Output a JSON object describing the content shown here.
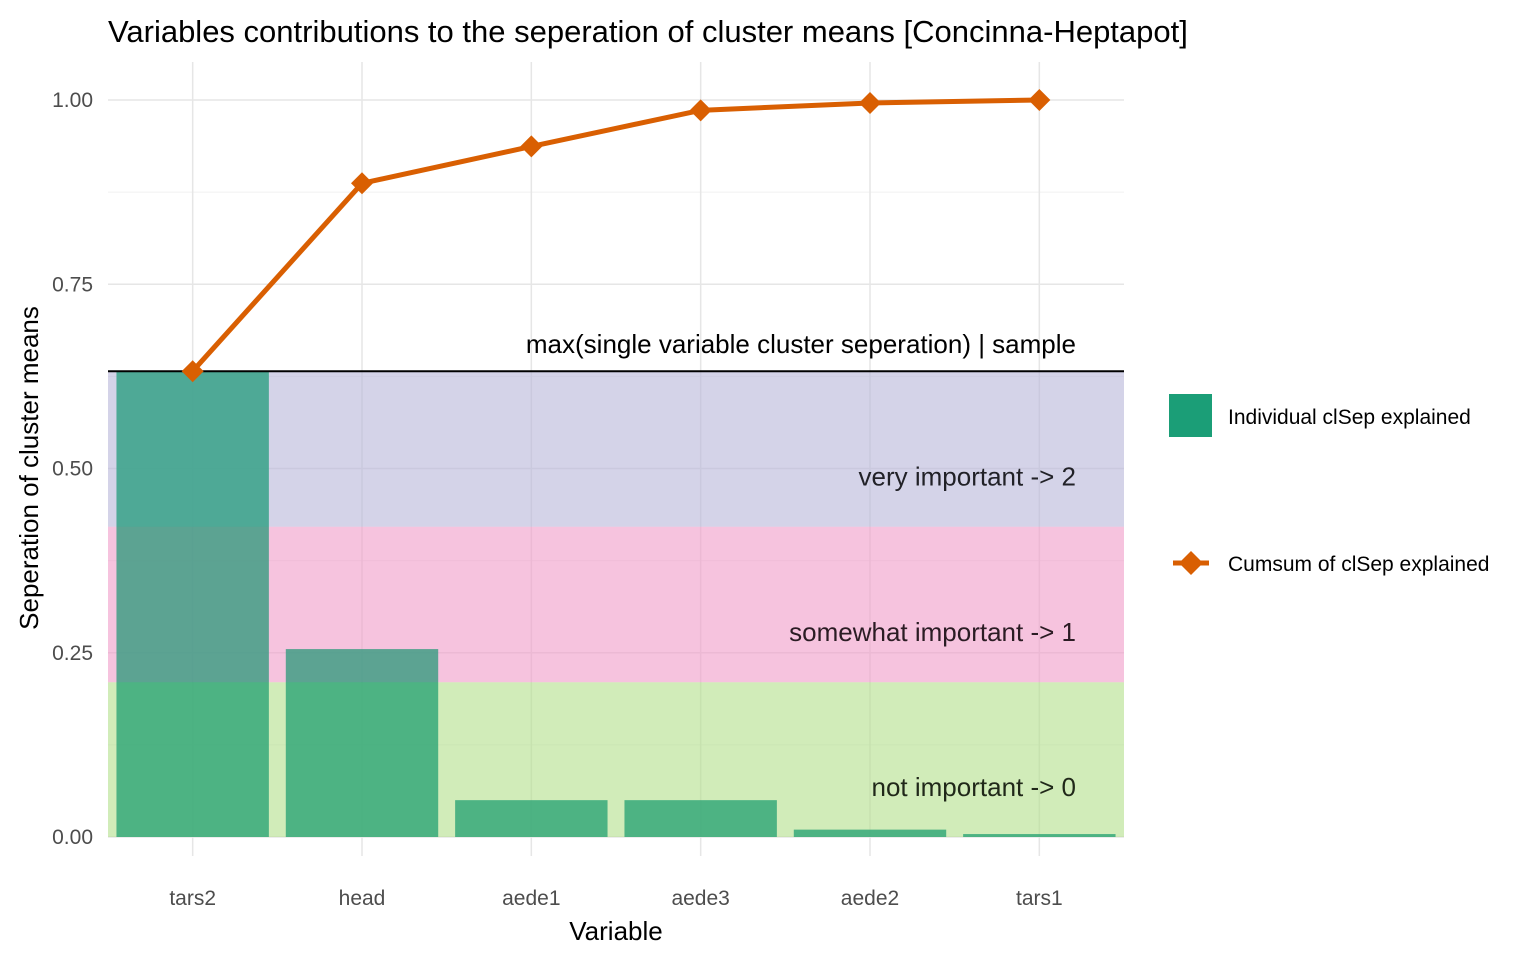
{
  "chart_data": {
    "type": "bar",
    "title": "Variables contributions to the seperation of cluster means [Concinna-Heptapot]",
    "xlabel": "Variable",
    "ylabel": "Seperation of cluster means",
    "categories": [
      "tars2",
      "head",
      "aede1",
      "aede3",
      "aede2",
      "tars1"
    ],
    "ylim": [
      0,
      1.04
    ],
    "yticks": [
      0,
      0.25,
      0.5,
      0.75,
      1.0
    ],
    "ytick_labels": [
      "0.00",
      "0.25",
      "0.50",
      "0.75",
      "1.00"
    ],
    "grid": true,
    "legend_position": "right",
    "series": [
      {
        "name": "Individual clSep explained",
        "type": "bar",
        "color": "#1b9e77",
        "values": [
          0.632,
          0.255,
          0.05,
          0.05,
          0.01,
          0.004
        ]
      },
      {
        "name": "Cumsum of clSep explained",
        "type": "line",
        "marker": "diamond",
        "color": "#d95f02",
        "values": [
          0.632,
          0.887,
          0.937,
          0.986,
          0.996,
          1.0
        ]
      }
    ],
    "bands": [
      {
        "label": "not important -> 0",
        "from": 0,
        "to": 0.21,
        "color": "#b2df8a"
      },
      {
        "label": "somewhat important -> 1",
        "from": 0.21,
        "to": 0.421,
        "color": "#f19ac7"
      },
      {
        "label": "very important -> 2",
        "from": 0.421,
        "to": 0.632,
        "color": "#b8b5da"
      }
    ],
    "reference_line": {
      "label": "max(single variable cluster seperation) | sample",
      "value": 0.632
    }
  }
}
